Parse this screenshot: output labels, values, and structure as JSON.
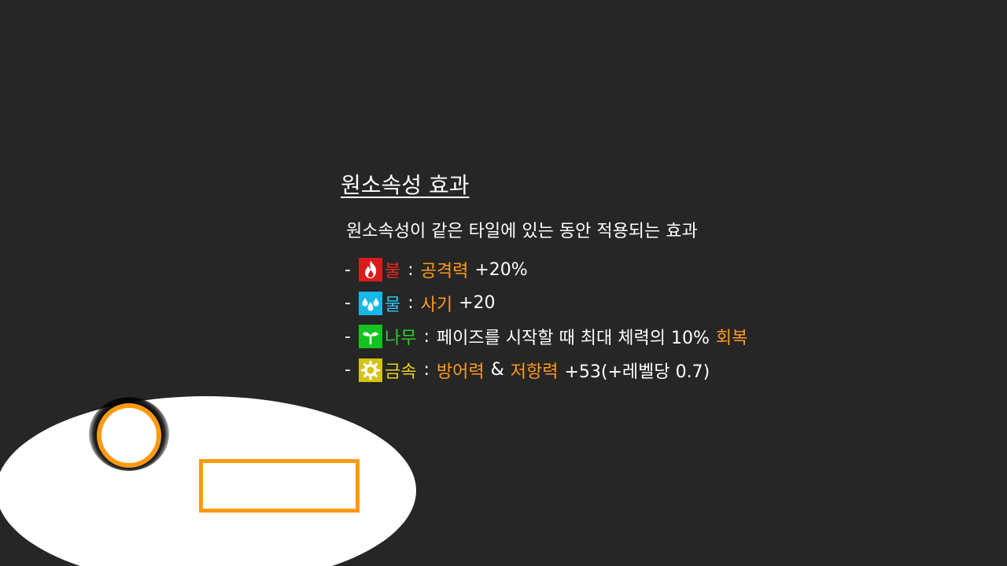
{
  "panel": {
    "title": "원소속성 효과",
    "description": "원소속성이 같은 타일에 있는 동안 적용되는 효과"
  },
  "effects": [
    {
      "dash": "-",
      "icon": "fire-icon",
      "element": "불",
      "element_color": "#e8281e",
      "separator": ":",
      "stat": "공격력",
      "value": "+20%"
    },
    {
      "dash": "-",
      "icon": "water-drops-icon",
      "element": "물",
      "element_color": "#2ec6f0",
      "separator": ":",
      "stat": "사기",
      "value": "+20"
    },
    {
      "dash": "-",
      "icon": "sprout-icon",
      "element": "나무",
      "element_color": "#2ad02a",
      "separator": ":",
      "text_before": "페이즈를 시작할 때 최대 체력의 10%",
      "stat": "회복"
    },
    {
      "dash": "-",
      "icon": "gear-sun-icon",
      "element": "금속",
      "element_color": "#e8d21e",
      "separator": ":",
      "stat": "방어력",
      "amp": "&",
      "stat2": "저항력",
      "value": "+53(+레벨당 0.7)"
    }
  ],
  "colors": {
    "background": "#262626",
    "highlight": "#ff9a1e",
    "selection": "#ff9a0e"
  }
}
